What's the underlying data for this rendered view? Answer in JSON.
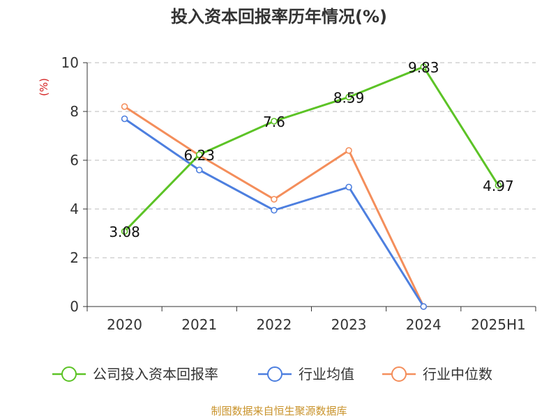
{
  "chart_data": {
    "type": "line",
    "title": "投入资本回报率历年情况(%)",
    "ylabel": "(%)",
    "xlabel": "",
    "categories": [
      "2020",
      "2021",
      "2022",
      "2023",
      "2024",
      "2025H1"
    ],
    "ylim": [
      0,
      10
    ],
    "yticks": [
      0,
      2,
      4,
      6,
      8,
      10
    ],
    "grid": true,
    "legend_position": "bottom",
    "series": [
      {
        "name": "公司投入资本回报率",
        "color": "#5cc326",
        "values": [
          3.08,
          6.23,
          7.6,
          8.59,
          9.83,
          4.97
        ],
        "labels": [
          "3.08",
          "6.23",
          "7.6",
          "8.59",
          "9.83",
          "4.97"
        ]
      },
      {
        "name": "行业均值",
        "color": "#4d7fdf",
        "values": [
          7.7,
          5.6,
          3.95,
          4.9,
          0.0,
          null
        ]
      },
      {
        "name": "行业中位数",
        "color": "#f48e5b",
        "values": [
          8.2,
          6.2,
          4.4,
          6.4,
          0.0,
          null
        ]
      }
    ]
  },
  "footer": {
    "source": "制图数据来自恒生聚源数据库",
    "source_color": "#c9932b"
  },
  "colors": {
    "unit_label": "#d42020",
    "axis": "#333333",
    "grid": "#bbbbbb"
  }
}
